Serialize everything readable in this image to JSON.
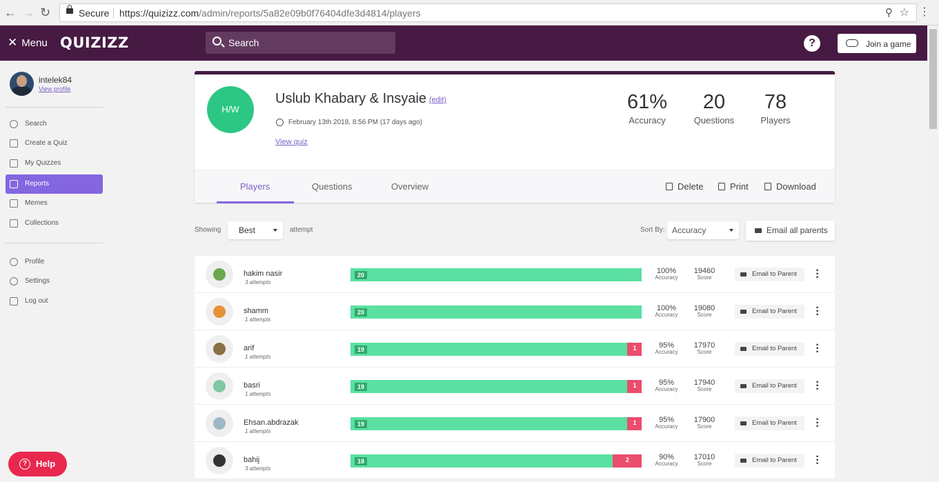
{
  "browser": {
    "secure_label": "Secure",
    "url_host": "https://quizizz.com",
    "url_path": "/admin/reports/5a82e09b0f76404dfe3d4814/players"
  },
  "appbar": {
    "menu_label": "Menu",
    "logo_text": "QUIZIZZ",
    "search_placeholder": "Search",
    "join_label": "Join a game",
    "brand_color": "#461a42"
  },
  "sidebar": {
    "username": "intelek84",
    "view_profile": "View profile",
    "items": [
      {
        "label": "Search",
        "icon": "search-icon"
      },
      {
        "label": "Create a Quiz",
        "icon": "plus-square-icon"
      },
      {
        "label": "My Quizzes",
        "icon": "document-icon"
      },
      {
        "label": "Reports",
        "icon": "bar-chart-icon",
        "active": true
      },
      {
        "label": "Memes",
        "icon": "image-icon"
      },
      {
        "label": "Collections",
        "icon": "folder-icon"
      }
    ],
    "account_items": [
      {
        "label": "Profile",
        "icon": "user-icon"
      },
      {
        "label": "Settings",
        "icon": "gear-icon"
      },
      {
        "label": "Log out",
        "icon": "logout-icon"
      }
    ],
    "active_color": "#8466e0"
  },
  "report": {
    "badge": "H/W",
    "title": "Uslub Khabary & Insyaie",
    "edit": "(edit)",
    "date": "February 13th 2018, 8:56 PM (17 days ago)",
    "view_quiz": "View quiz",
    "stats": [
      {
        "value": "61%",
        "label": "Accuracy"
      },
      {
        "value": "20",
        "label": "Questions"
      },
      {
        "value": "78",
        "label": "Players"
      }
    ],
    "tabs": [
      "Players",
      "Questions",
      "Overview"
    ],
    "active_tab": "Players",
    "actions": [
      "Delete",
      "Print",
      "Download"
    ]
  },
  "controls": {
    "showing": "Showing",
    "attempt_select": "Best",
    "attempt_label": "attempt",
    "sort_by": "Sort By:",
    "sort_select": "Accuracy",
    "email_all": "Email all parents"
  },
  "players": [
    {
      "name": "hakim nasir",
      "attempts": "3 attempts",
      "correct": 20,
      "incorrect": 0,
      "accuracy": "100%",
      "score": "19460"
    },
    {
      "name": "shamm",
      "attempts": "1 attempts",
      "correct": 20,
      "incorrect": 0,
      "accuracy": "100%",
      "score": "19080"
    },
    {
      "name": "arif",
      "attempts": "1 attempts",
      "correct": 19,
      "incorrect": 1,
      "accuracy": "95%",
      "score": "17970"
    },
    {
      "name": "basri",
      "attempts": "1 attempts",
      "correct": 19,
      "incorrect": 1,
      "accuracy": "95%",
      "score": "17940"
    },
    {
      "name": "Ehsan.abdrazak",
      "attempts": "1 attempts",
      "correct": 19,
      "incorrect": 1,
      "accuracy": "95%",
      "score": "17900"
    },
    {
      "name": "bahij",
      "attempts": "3 attempts",
      "correct": 18,
      "incorrect": 2,
      "accuracy": "90%",
      "score": "17010"
    }
  ],
  "row_labels": {
    "accuracy": "Accuracy",
    "score": "Score",
    "email_parent": "Email to Parent"
  },
  "colors": {
    "correct": "#5be0a2",
    "incorrect": "#ec4c6e"
  },
  "help": "Help"
}
